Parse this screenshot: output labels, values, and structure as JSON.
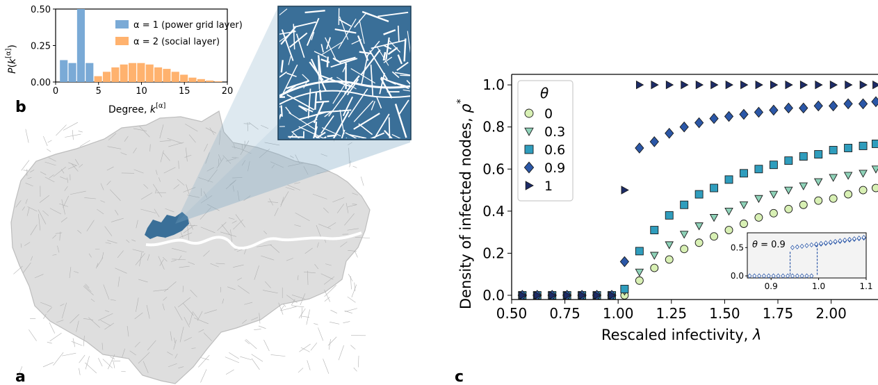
{
  "panel_labels": {
    "a": "a",
    "b": "b",
    "c": "c"
  },
  "colors": {
    "power": "#7aaad6",
    "social": "#ffb26e",
    "map_highlight": "#3a6f98",
    "s0": "#d8f0b4",
    "s03": "#8ed2b8",
    "s06": "#2f9dbd",
    "s09": "#2b57a7",
    "s1": "#1c2b67"
  },
  "chart_data": [
    {
      "type": "bar",
      "xlabel": "Degree, k^[α]",
      "ylabel": "P(k^[α])",
      "xlim": [
        0,
        20
      ],
      "ylim": [
        0,
        0.5
      ],
      "xticks": [
        "0",
        "5",
        "10",
        "15",
        "20"
      ],
      "yticks": [
        "0.00",
        "0.25",
        "0.50"
      ],
      "legend_position": "top-right",
      "series": [
        {
          "name": "α = 1 (power grid layer)",
          "x": [
            1,
            2,
            3,
            4
          ],
          "values": [
            0.15,
            0.13,
            0.5,
            0.13
          ]
        },
        {
          "name": "α = 2 (social layer)",
          "x": [
            4,
            5,
            6,
            7,
            8,
            9,
            10,
            11,
            12,
            13,
            14,
            15,
            16,
            17,
            18,
            19
          ],
          "values": [
            0.01,
            0.04,
            0.07,
            0.1,
            0.12,
            0.13,
            0.13,
            0.12,
            0.1,
            0.09,
            0.07,
            0.05,
            0.03,
            0.02,
            0.01,
            0.005
          ]
        }
      ]
    },
    {
      "type": "scatter",
      "xlabel": "Rescaled infectivity, λ",
      "ylabel": "Density of infected nodes, ρ*",
      "xlim": [
        0.5,
        2.22
      ],
      "ylim": [
        -0.02,
        1.05
      ],
      "xticks": [
        "0.50",
        "0.75",
        "1.00",
        "1.25",
        "1.50",
        "1.75",
        "2.00"
      ],
      "yticks": [
        "0.0",
        "0.2",
        "0.4",
        "0.6",
        "0.8",
        "1.0"
      ],
      "legend_title": "θ",
      "legend_position": "top-left",
      "series": [
        {
          "name": "0",
          "marker": "circle",
          "x": [
            0.55,
            0.62,
            0.69,
            0.76,
            0.83,
            0.9,
            0.97,
            1.03,
            1.1,
            1.17,
            1.24,
            1.31,
            1.38,
            1.45,
            1.52,
            1.59,
            1.66,
            1.73,
            1.8,
            1.87,
            1.94,
            2.01,
            2.08,
            2.15,
            2.21
          ],
          "values": [
            0,
            0,
            0,
            0,
            0,
            0,
            0,
            0,
            0.07,
            0.13,
            0.17,
            0.22,
            0.25,
            0.28,
            0.31,
            0.34,
            0.37,
            0.39,
            0.41,
            0.43,
            0.45,
            0.46,
            0.48,
            0.5,
            0.51
          ]
        },
        {
          "name": "0.3",
          "marker": "triangle-down",
          "x": [
            0.55,
            0.62,
            0.69,
            0.76,
            0.83,
            0.9,
            0.97,
            1.03,
            1.1,
            1.17,
            1.24,
            1.31,
            1.38,
            1.45,
            1.52,
            1.59,
            1.66,
            1.73,
            1.8,
            1.87,
            1.94,
            2.01,
            2.08,
            2.15,
            2.21
          ],
          "values": [
            0,
            0,
            0,
            0,
            0,
            0,
            0,
            0.02,
            0.11,
            0.19,
            0.24,
            0.29,
            0.33,
            0.37,
            0.4,
            0.43,
            0.46,
            0.48,
            0.5,
            0.52,
            0.54,
            0.56,
            0.57,
            0.58,
            0.6
          ]
        },
        {
          "name": "0.6",
          "marker": "square",
          "x": [
            0.55,
            0.62,
            0.69,
            0.76,
            0.83,
            0.9,
            0.97,
            1.03,
            1.1,
            1.17,
            1.24,
            1.31,
            1.38,
            1.45,
            1.52,
            1.59,
            1.66,
            1.73,
            1.8,
            1.87,
            1.94,
            2.01,
            2.08,
            2.15,
            2.21
          ],
          "values": [
            0,
            0,
            0,
            0,
            0,
            0,
            0,
            0.03,
            0.21,
            0.31,
            0.38,
            0.43,
            0.48,
            0.51,
            0.55,
            0.58,
            0.6,
            0.62,
            0.64,
            0.66,
            0.67,
            0.69,
            0.7,
            0.71,
            0.72
          ]
        },
        {
          "name": "0.9",
          "marker": "diamond",
          "x": [
            0.55,
            0.62,
            0.69,
            0.76,
            0.83,
            0.9,
            0.97,
            1.03,
            1.1,
            1.17,
            1.24,
            1.31,
            1.38,
            1.45,
            1.52,
            1.59,
            1.66,
            1.73,
            1.8,
            1.87,
            1.94,
            2.01,
            2.08,
            2.15,
            2.21
          ],
          "values": [
            0,
            0,
            0,
            0,
            0,
            0,
            0,
            0.16,
            0.7,
            0.73,
            0.77,
            0.8,
            0.82,
            0.84,
            0.85,
            0.86,
            0.87,
            0.88,
            0.89,
            0.89,
            0.9,
            0.9,
            0.91,
            0.91,
            0.92
          ]
        },
        {
          "name": "1",
          "marker": "triangle-right",
          "x": [
            0.55,
            0.62,
            0.69,
            0.76,
            0.83,
            0.9,
            0.97,
            1.03,
            1.1,
            1.17,
            1.24,
            1.31,
            1.38,
            1.45,
            1.52,
            1.59,
            1.66,
            1.73,
            1.8,
            1.87,
            1.94,
            2.01,
            2.08,
            2.15,
            2.21
          ],
          "values": [
            0,
            0,
            0,
            0,
            0,
            0,
            0,
            0.5,
            1,
            1,
            1,
            1,
            1,
            1,
            1,
            1,
            1,
            1,
            1,
            1,
            1,
            1,
            1,
            1,
            1
          ]
        }
      ],
      "inset": {
        "label": "θ = 0.9",
        "xlim": [
          0.85,
          1.1
        ],
        "ylim": [
          0,
          0.7
        ],
        "xticks": [
          "0.9",
          "1.0",
          "1.1"
        ],
        "yticks": [
          "0.0",
          "0.5"
        ]
      }
    }
  ]
}
